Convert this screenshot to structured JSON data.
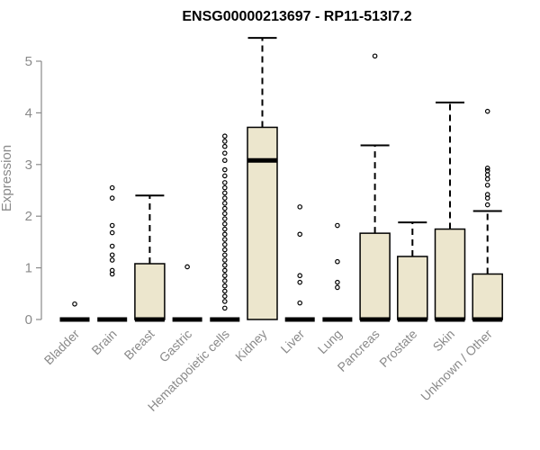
{
  "chart_data": {
    "type": "box",
    "title": "ENSG00000213697 - RP11-513I7.2",
    "xlabel": "",
    "ylabel": "Expression",
    "ylim": [
      0,
      5.5
    ],
    "yticks": [
      0,
      1,
      2,
      3,
      4,
      5
    ],
    "ytick_labels": [
      "0",
      "1",
      "2",
      "3",
      "4",
      "5"
    ],
    "grid": false,
    "box_fill": "#ece6cd",
    "categories": [
      "Bladder",
      "Brain",
      "Breast",
      "Gastric",
      "Hematopoietic cells",
      "Kidney",
      "Liver",
      "Lung",
      "Pancreas",
      "Prostate",
      "Skin",
      "Unknown / Other"
    ],
    "boxes": [
      {
        "category": "Bladder",
        "q1": 0,
        "median": 0,
        "q3": 0,
        "whisker_low": 0,
        "whisker_high": 0,
        "outliers": [
          0.3
        ]
      },
      {
        "category": "Brain",
        "q1": 0,
        "median": 0,
        "q3": 0,
        "whisker_low": 0,
        "whisker_high": 0,
        "outliers": [
          0.88,
          0.95,
          1.15,
          1.25,
          1.42,
          1.68,
          1.82,
          2.35,
          2.55
        ]
      },
      {
        "category": "Breast",
        "q1": 0,
        "median": 0,
        "q3": 1.08,
        "whisker_low": 0,
        "whisker_high": 2.4,
        "outliers": []
      },
      {
        "category": "Gastric",
        "q1": 0,
        "median": 0,
        "q3": 0,
        "whisker_low": 0,
        "whisker_high": 0,
        "outliers": [
          1.02
        ]
      },
      {
        "category": "Hematopoietic cells",
        "q1": 0,
        "median": 0,
        "q3": 0,
        "whisker_low": 0,
        "whisker_high": 0,
        "outliers": [
          0.22,
          0.35,
          0.45,
          0.55,
          0.65,
          0.75,
          0.85,
          0.95,
          1.05,
          1.15,
          1.25,
          1.35,
          1.45,
          1.55,
          1.65,
          1.75,
          1.85,
          1.95,
          2.05,
          2.15,
          2.25,
          2.35,
          2.45,
          2.55,
          2.65,
          2.78,
          2.9,
          3.08,
          3.22,
          3.35,
          3.45,
          3.55
        ]
      },
      {
        "category": "Kidney",
        "q1": 0,
        "median": 3.08,
        "q3": 3.72,
        "whisker_low": 0,
        "whisker_high": 5.45,
        "outliers": []
      },
      {
        "category": "Liver",
        "q1": 0,
        "median": 0,
        "q3": 0,
        "whisker_low": 0,
        "whisker_high": 0,
        "outliers": [
          0.32,
          0.72,
          0.85,
          1.65,
          2.18
        ]
      },
      {
        "category": "Lung",
        "q1": 0,
        "median": 0,
        "q3": 0,
        "whisker_low": 0,
        "whisker_high": 0,
        "outliers": [
          0.62,
          0.72,
          1.12,
          1.82
        ]
      },
      {
        "category": "Pancreas",
        "q1": 0,
        "median": 0,
        "q3": 1.67,
        "whisker_low": 0,
        "whisker_high": 3.37,
        "outliers": [
          5.1
        ]
      },
      {
        "category": "Prostate",
        "q1": 0,
        "median": 0,
        "q3": 1.22,
        "whisker_low": 0,
        "whisker_high": 1.88,
        "outliers": []
      },
      {
        "category": "Skin",
        "q1": 0,
        "median": 0,
        "q3": 1.75,
        "whisker_low": 0,
        "whisker_high": 4.2,
        "outliers": []
      },
      {
        "category": "Unknown / Other",
        "q1": 0,
        "median": 0,
        "q3": 0.88,
        "whisker_low": 0,
        "whisker_high": 2.1,
        "outliers": [
          2.22,
          2.35,
          2.42,
          2.6,
          2.72,
          2.8,
          2.88,
          2.93,
          4.03
        ]
      }
    ]
  }
}
